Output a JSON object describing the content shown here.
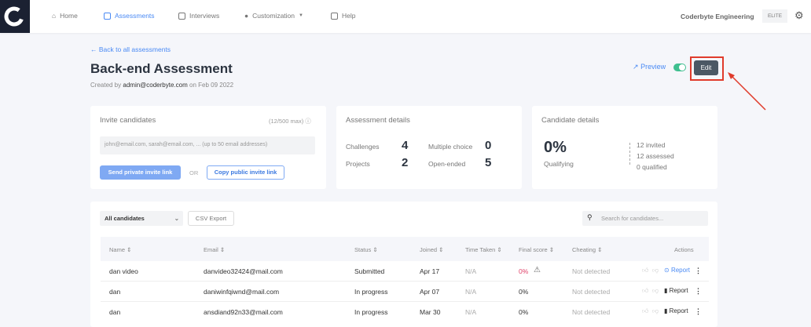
{
  "nav": {
    "items": [
      {
        "label": "Home",
        "icon": "home-icon"
      },
      {
        "label": "Assessments",
        "icon": "assessments-icon",
        "active": true
      },
      {
        "label": "Interviews",
        "icon": "interviews-icon"
      },
      {
        "label": "Customization",
        "icon": "palette-icon"
      },
      {
        "label": "Help",
        "icon": "book-icon"
      }
    ],
    "org": "Coderbyte Engineering",
    "plan": "ELITE"
  },
  "page": {
    "back": "← Back to all assessments",
    "title": "Back-end Assessment",
    "created_prefix": "Created by",
    "created_by": "admin@coderbyte.com",
    "created_suffix": "on Feb 09 2022",
    "preview": "Preview",
    "edit": "Edit",
    "toggle_on": true
  },
  "invite": {
    "title": "Invite candidates",
    "limit": "(12/500 max)",
    "placeholder": "john@email.com, sarah@email.com, ... (up to 50 email addresses)",
    "send": "Send private invite link",
    "or": "OR",
    "copy": "Copy public invite link"
  },
  "details": {
    "title": "Assessment details",
    "items": [
      {
        "label": "Challenges",
        "value": "4"
      },
      {
        "label": "Multiple choice",
        "value": "0"
      },
      {
        "label": "Projects",
        "value": "2"
      },
      {
        "label": "Open-ended",
        "value": "5"
      }
    ]
  },
  "candidates": {
    "title": "Candidate details",
    "pct": "0%",
    "pct_label": "Qualifying",
    "funnel": [
      "12 invited",
      "12 assessed",
      "0 qualified"
    ]
  },
  "table": {
    "filter": "All candidates",
    "csv": "CSV Export",
    "search_placeholder": "Search for candidates...",
    "headers": [
      "Name ⇕",
      "Email ⇕",
      "Status ⇕",
      "Joined ⇕",
      "Time Taken ⇕",
      "Final score ⇕",
      "Cheating ⇕",
      "Actions"
    ],
    "rows": [
      {
        "name": "dan video",
        "email": "danvideo32424@mail.com",
        "status": "Submitted",
        "joined": "Apr 17",
        "time": "N/A",
        "score": "0%",
        "cheating": "Not detected",
        "report": "Report"
      },
      {
        "name": "dan",
        "email": "daniwinfqiwnd@mail.com",
        "status": "In progress",
        "joined": "Apr 07",
        "time": "N/A",
        "score": "0%",
        "cheating": "Not detected",
        "report": "Report"
      },
      {
        "name": "dan",
        "email": "ansdiand92n33@mail.com",
        "status": "In progress",
        "joined": "Mar 30",
        "time": "N/A",
        "score": "0%",
        "cheating": "Not detected",
        "report": "Report"
      }
    ]
  },
  "colors": {
    "accent": "#4a8af4",
    "toggle": "#3fbf8f",
    "edit": "#4b5864",
    "highlight": "#e03b2b",
    "danger": "#e0436a"
  }
}
